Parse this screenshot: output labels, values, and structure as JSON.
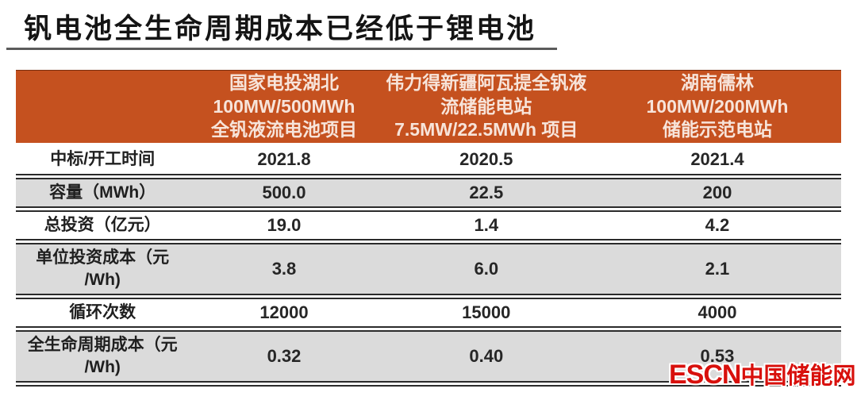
{
  "title": "钒电池全生命周期成本已经低于锂电池",
  "watermark": {
    "escn": "ESCN",
    "site_name": "中国储能网"
  },
  "colors": {
    "header_bg": "#C5511F",
    "header_text": "#F7E4DA",
    "shaded_row_bg": "#DBDBDB",
    "border": "#2B2B2B",
    "watermark_red": "#D8100C",
    "title_text": "#141414"
  },
  "chart_data": {
    "type": "table",
    "title": "钒电池全生命周期成本已经低于锂电池",
    "columns": [
      "国家电投湖北\n100MW/500MWh\n全钒液流电池项目",
      "伟力得新疆阿瓦提全钒液\n流储能电站\n7.5MW/22.5MWh 项目",
      "湖南儒林\n100MW/200MWh\n储能示范电站"
    ],
    "rows": [
      {
        "label": "中标/开工时间",
        "values": [
          "2021.8",
          "2020.5",
          "2021.4"
        ]
      },
      {
        "label": "容量（MWh）",
        "values": [
          "500.0",
          "22.5",
          "200"
        ]
      },
      {
        "label": "总投资（亿元）",
        "values": [
          "19.0",
          "1.4",
          "4.2"
        ]
      },
      {
        "label": "单位投资成本（元\n/Wh)",
        "values": [
          "3.8",
          "6.0",
          "2.1"
        ]
      },
      {
        "label": "循环次数",
        "values": [
          "12000",
          "15000",
          "4000"
        ]
      },
      {
        "label": "全生命周期成本（元\n/Wh)",
        "values": [
          "0.32",
          "0.40",
          "0.53"
        ]
      }
    ]
  }
}
